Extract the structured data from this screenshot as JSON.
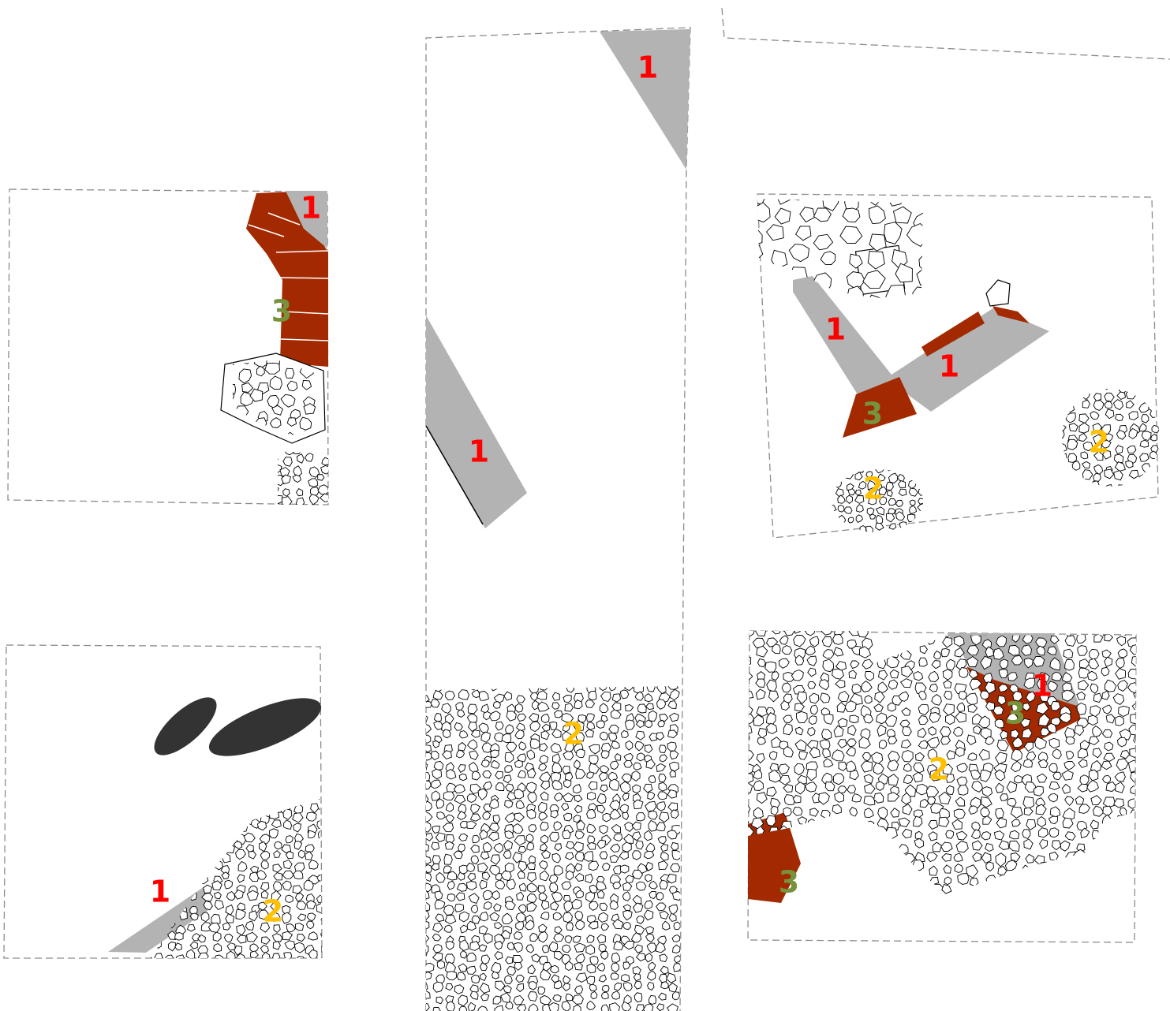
{
  "labels": [
    "1",
    "3",
    "1",
    "1",
    "2",
    "1",
    "1",
    "3",
    "2",
    "2",
    "1",
    "2",
    "1",
    "3",
    "2",
    "3"
  ]
}
